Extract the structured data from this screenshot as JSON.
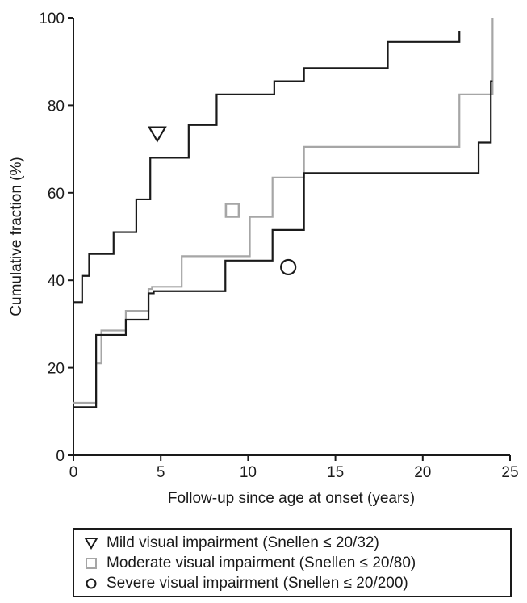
{
  "chart_data": {
    "type": "line",
    "step": true,
    "xlabel": "Follow-up since age at onset (years)",
    "ylabel": "Cumulative fraction (%)",
    "xlim": [
      0,
      25
    ],
    "ylim": [
      0,
      100
    ],
    "xticks": [
      0,
      5,
      10,
      15,
      20,
      25
    ],
    "yticks": [
      0,
      20,
      40,
      60,
      80,
      100
    ],
    "grid": false,
    "legend_position": "bottom",
    "series": [
      {
        "name": "Mild visual impairment (Snellen ≤ 20/32)",
        "marker": "triangle-down",
        "color": "#1a1a1a",
        "marker_at": [
          4.8,
          73.5
        ],
        "x": [
          0,
          0.5,
          0.9,
          1.3,
          2.3,
          2.8,
          3.6,
          4.4,
          6.6,
          8.2,
          11.5,
          13.2,
          18.0,
          22.1
        ],
        "y": [
          35,
          41,
          46,
          46,
          51,
          51,
          58.5,
          68,
          75.5,
          82.5,
          85.5,
          88.5,
          94.5,
          97
        ]
      },
      {
        "name": "Moderate visual impairment (Snellen ≤ 20/80)",
        "marker": "square",
        "color": "#a6a6a6",
        "marker_at": [
          9.1,
          56
        ],
        "x": [
          0,
          1.3,
          1.6,
          3.0,
          4.3,
          4.5,
          6.2,
          10.1,
          11.4,
          13.2,
          22.1,
          24.0
        ],
        "y": [
          12,
          21,
          28.5,
          33,
          38,
          38.5,
          45.5,
          54.5,
          63.5,
          70.5,
          82.5,
          100
        ]
      },
      {
        "name": "Severe visual impairment (Snellen ≤ 20/200)",
        "marker": "circle",
        "color": "#1a1a1a",
        "marker_at": [
          12.3,
          43
        ],
        "x": [
          0,
          1.3,
          3.0,
          4.3,
          4.6,
          8.7,
          11.4,
          13.2,
          23.2,
          23.9,
          24.0
        ],
        "y": [
          11,
          27.5,
          31,
          37,
          37.5,
          44.5,
          51.5,
          64.5,
          71.5,
          85.5,
          85.5
        ]
      }
    ]
  }
}
